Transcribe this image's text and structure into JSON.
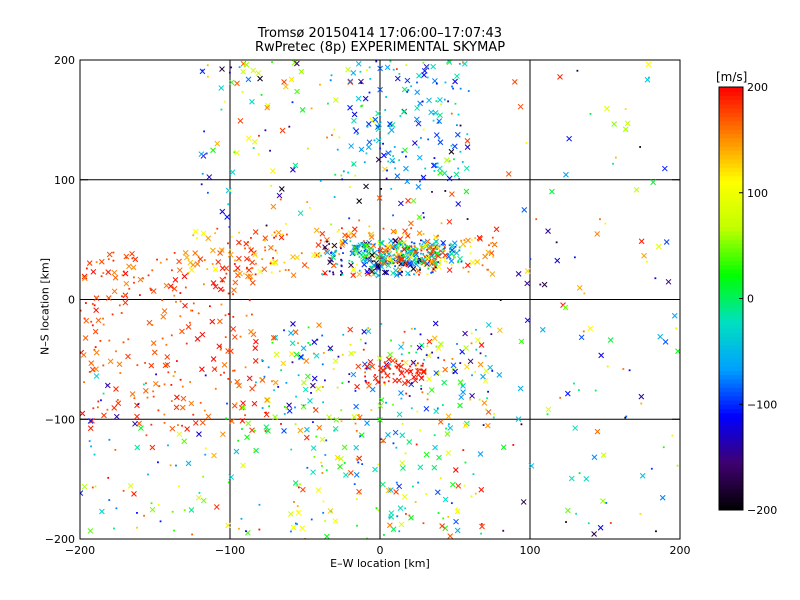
{
  "chart_data": {
    "type": "scatter",
    "title": "Tromsø 20150414 17:06:00–17:07:43",
    "subtitle": "RwPretec (8p) EXPERIMENTAL SKYMAP",
    "xlabel": "E–W location [km]",
    "ylabel": "N–S location [km]",
    "xlim": [
      -200,
      200
    ],
    "ylim": [
      -200,
      200
    ],
    "xticks": [
      -200,
      -100,
      0,
      100,
      200
    ],
    "yticks": [
      -200,
      -100,
      0,
      100,
      200
    ],
    "xtick_labels": [
      "−200",
      "−100",
      "0",
      "100",
      "200"
    ],
    "ytick_labels": [
      "−200",
      "−100",
      "0",
      "100",
      "200"
    ],
    "grid": true,
    "colorbar": {
      "unit": "[m/s]",
      "range": [
        -200,
        200
      ],
      "ticks": [
        200,
        100,
        0,
        -100,
        -200
      ],
      "tick_labels": [
        "200",
        "100",
        "0",
        "−100",
        "−200"
      ],
      "colors": [
        "#000000",
        "#400070",
        "#0000ff",
        "#00a0ff",
        "#00e0c0",
        "#00ff00",
        "#c0ff00",
        "#ffff00",
        "#ff8000",
        "#ff0000"
      ]
    },
    "clusters": [
      {
        "x": [
          -130,
          80
        ],
        "y": [
          20,
          60
        ],
        "v": [
          100,
          200
        ],
        "n": 220
      },
      {
        "x": [
          -40,
          40
        ],
        "y": [
          20,
          50
        ],
        "v": [
          -200,
          0
        ],
        "n": 160
      },
      {
        "x": [
          -20,
          55
        ],
        "y": [
          30,
          48
        ],
        "v": [
          -100,
          50
        ],
        "n": 150
      },
      {
        "x": [
          0,
          45
        ],
        "y": [
          30,
          45
        ],
        "v": [
          100,
          200
        ],
        "n": 60
      },
      {
        "x": [
          -200,
          -80
        ],
        "y": [
          -110,
          40
        ],
        "v": [
          150,
          200
        ],
        "n": 260
      },
      {
        "x": [
          -200,
          -80
        ],
        "y": [
          -200,
          -60
        ],
        "v": [
          -150,
          200
        ],
        "n": 90
      },
      {
        "x": [
          -80,
          80
        ],
        "y": [
          -110,
          -20
        ],
        "v": [
          -150,
          200
        ],
        "n": 260
      },
      {
        "x": [
          -10,
          30
        ],
        "y": [
          -70,
          -50
        ],
        "v": [
          180,
          200
        ],
        "n": 60
      },
      {
        "x": [
          -60,
          70
        ],
        "y": [
          -200,
          -110
        ],
        "v": [
          -100,
          200
        ],
        "n": 140
      },
      {
        "x": [
          -120,
          60
        ],
        "y": [
          60,
          200
        ],
        "v": [
          -200,
          200
        ],
        "n": 180
      },
      {
        "x": [
          -20,
          60
        ],
        "y": [
          100,
          200
        ],
        "v": [
          -120,
          0
        ],
        "n": 120
      },
      {
        "x": [
          80,
          200
        ],
        "y": [
          -200,
          200
        ],
        "v": [
          -200,
          200
        ],
        "n": 110
      }
    ]
  }
}
